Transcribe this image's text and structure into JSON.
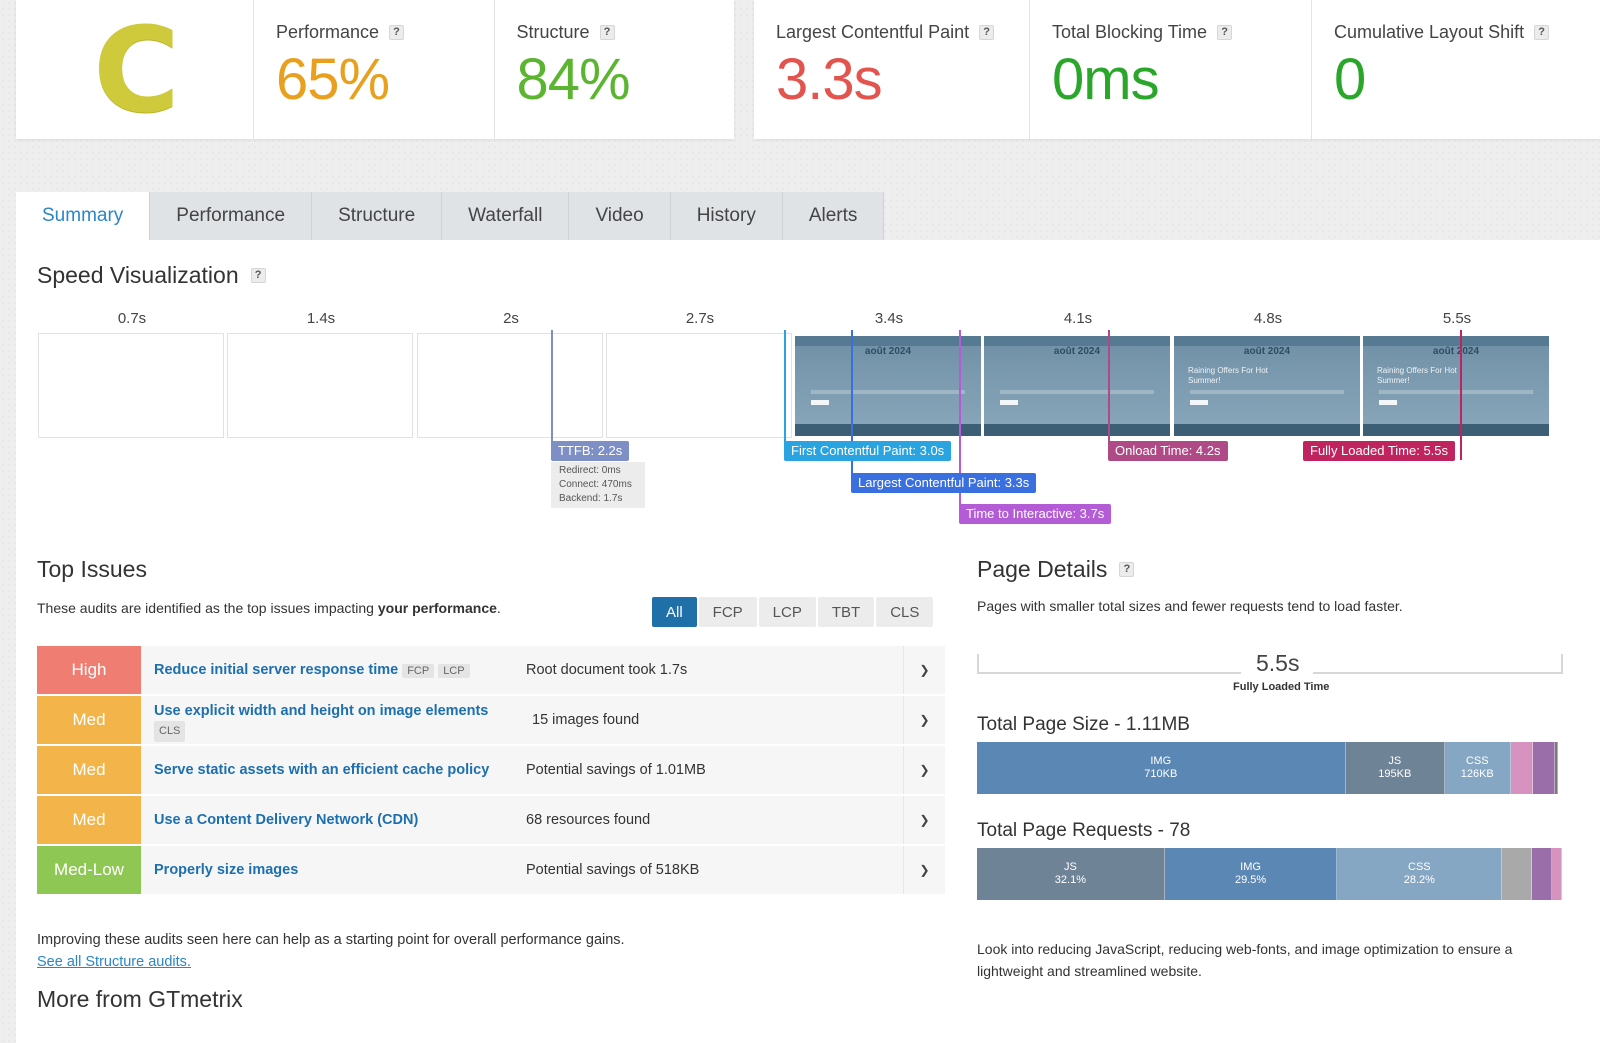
{
  "grade": "C",
  "scores": {
    "performance": {
      "label": "Performance",
      "value": "65%",
      "color": "#e8a01e"
    },
    "structure": {
      "label": "Structure",
      "value": "84%",
      "color": "#5bb530"
    }
  },
  "vitals": {
    "lcp": {
      "label": "Largest Contentful Paint",
      "value": "3.3s",
      "color": "#e2544d"
    },
    "tbt": {
      "label": "Total Blocking Time",
      "value": "0ms",
      "color": "#2aa62a"
    },
    "cls": {
      "label": "Cumulative Layout Shift",
      "value": "0",
      "color": "#2aa62a"
    }
  },
  "help": "?",
  "tabs": [
    "Summary",
    "Performance",
    "Structure",
    "Waterfall",
    "Video",
    "History",
    "Alerts"
  ],
  "speed": {
    "title": "Speed Visualization",
    "ticks": [
      "0.7s",
      "1.4s",
      "2s",
      "2.7s",
      "3.4s",
      "4.1s",
      "4.8s",
      "5.5s"
    ],
    "shot_date": "août 2024",
    "shot_promo": "Raining Offers For Hot Summer!",
    "markers": {
      "ttfb": "TTFB: 2.2s",
      "fcp": "First Contentful Paint: 3.0s",
      "lcp": "Largest Contentful Paint: 3.3s",
      "tti": "Time to Interactive: 3.7s",
      "onload": "Onload Time: 4.2s",
      "fully": "Fully Loaded Time: 5.5s"
    },
    "ttfb_details": {
      "redirect": "Redirect: 0ms",
      "connect": "Connect: 470ms",
      "backend": "Backend: 1.7s"
    }
  },
  "issues": {
    "title": "Top Issues",
    "desc_prefix": "These audits are identified as the top issues impacting ",
    "desc_bold": "your performance",
    "desc_suffix": ".",
    "filters": [
      "All",
      "FCP",
      "LCP",
      "TBT",
      "CLS"
    ],
    "rows": [
      {
        "severity": "High",
        "title": "Reduce initial server response time",
        "tags": [
          "FCP",
          "LCP"
        ],
        "info": "Root document took 1.7s"
      },
      {
        "severity": "Med",
        "title": "Use explicit width and height on image elements",
        "tags": [
          "CLS"
        ],
        "info": "15 images found"
      },
      {
        "severity": "Med",
        "title": "Serve static assets with an efficient cache policy",
        "tags": [],
        "info": "Potential savings of 1.01MB"
      },
      {
        "severity": "Med",
        "title": "Use a Content Delivery Network (CDN)",
        "tags": [],
        "info": "68 resources found"
      },
      {
        "severity": "Med-Low",
        "title": "Properly size images",
        "tags": [],
        "info": "Potential savings of 518KB"
      }
    ],
    "footer": "Improving these audits seen here can help as a starting point for overall performance gains.",
    "link": "See all Structure audits."
  },
  "page_details": {
    "title": "Page Details",
    "desc": "Pages with smaller total sizes and fewer requests tend to load faster.",
    "fully_loaded_value": "5.5s",
    "fully_loaded_label": "Fully Loaded Time",
    "size_title": "Total Page Size - 1.11MB",
    "size_segments": [
      {
        "name": "IMG",
        "value": "710KB",
        "share": 0.63,
        "color": "#5b87b4"
      },
      {
        "name": "JS",
        "value": "195KB",
        "share": 0.17,
        "color": "#6f8396"
      },
      {
        "name": "CSS",
        "value": "126KB",
        "share": 0.112,
        "color": "#85a7c4"
      },
      {
        "name": "",
        "value": "",
        "share": 0.038,
        "color": "#d693c0"
      },
      {
        "name": "",
        "value": "",
        "share": 0.038,
        "color": "#9a6fa9"
      },
      {
        "name": "",
        "value": "",
        "share": 0.006,
        "color": "#7a7a7a"
      }
    ],
    "requests_title": "Total Page Requests - 78",
    "request_segments": [
      {
        "name": "JS",
        "value": "32.1%",
        "share": 0.321,
        "color": "#6f8396"
      },
      {
        "name": "IMG",
        "value": "29.5%",
        "share": 0.295,
        "color": "#5b87b4"
      },
      {
        "name": "CSS",
        "value": "28.2%",
        "share": 0.282,
        "color": "#85a7c4"
      },
      {
        "name": "",
        "value": "",
        "share": 0.05,
        "color": "#a9a9a9"
      },
      {
        "name": "",
        "value": "",
        "share": 0.035,
        "color": "#9a6fa9"
      },
      {
        "name": "",
        "value": "",
        "share": 0.017,
        "color": "#d693c0"
      }
    ],
    "note": "Look into reducing JavaScript, reducing web-fonts, and image optimization to ensure a lightweight and streamlined website."
  },
  "more_title": "More from GTmetrix",
  "severity_colors": {
    "High": "#ef7d72",
    "Med": "#f3b54a",
    "Med-Low": "#8fc754"
  }
}
